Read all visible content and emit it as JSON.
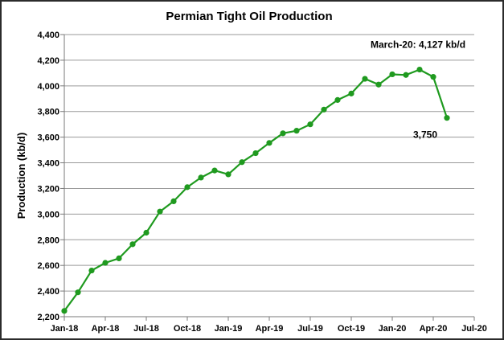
{
  "chart_data": {
    "type": "line",
    "title": "Permian Tight Oil Production",
    "xlabel": "",
    "ylabel": "Production (kb/d)",
    "ylim": [
      2200,
      4400
    ],
    "yticks": [
      "2,200",
      "2,400",
      "2,600",
      "2,800",
      "3,000",
      "3,200",
      "3,400",
      "3,600",
      "3,800",
      "4,000",
      "4,200",
      "4,400"
    ],
    "xtick_labels": [
      "Jan-18",
      "Apr-18",
      "Jul-18",
      "Oct-18",
      "Jan-19",
      "Apr-19",
      "Jul-19",
      "Oct-19",
      "Jan-20",
      "Apr-20",
      "Jul-20"
    ],
    "grid": true,
    "legend": "none",
    "line_color": "#1f9a1f",
    "series": [
      {
        "x": [
          "Jan-18",
          "Feb-18",
          "Mar-18",
          "Apr-18",
          "May-18",
          "Jun-18",
          "Jul-18",
          "Aug-18",
          "Sep-18",
          "Oct-18",
          "Nov-18",
          "Dec-18",
          "Jan-19",
          "Feb-19",
          "Mar-19",
          "Apr-19",
          "May-19",
          "Jun-19",
          "Jul-19",
          "Aug-19",
          "Sep-19",
          "Oct-19",
          "Nov-19",
          "Dec-19",
          "Jan-20",
          "Feb-20",
          "Mar-20",
          "Apr-20",
          "May-20"
        ],
        "values": [
          2245,
          2390,
          2560,
          2620,
          2655,
          2765,
          2855,
          3020,
          3100,
          3210,
          3285,
          3340,
          3310,
          3405,
          3475,
          3555,
          3630,
          3650,
          3700,
          3815,
          3890,
          3940,
          4055,
          4010,
          4090,
          4085,
          4127,
          4070,
          3750
        ]
      }
    ],
    "annotations": [
      {
        "text": "March-20: 4,127 kb/d",
        "x": "Mar-20",
        "y": 4127
      },
      {
        "text": "3,750",
        "x": "May-20",
        "y": 3750
      }
    ]
  }
}
